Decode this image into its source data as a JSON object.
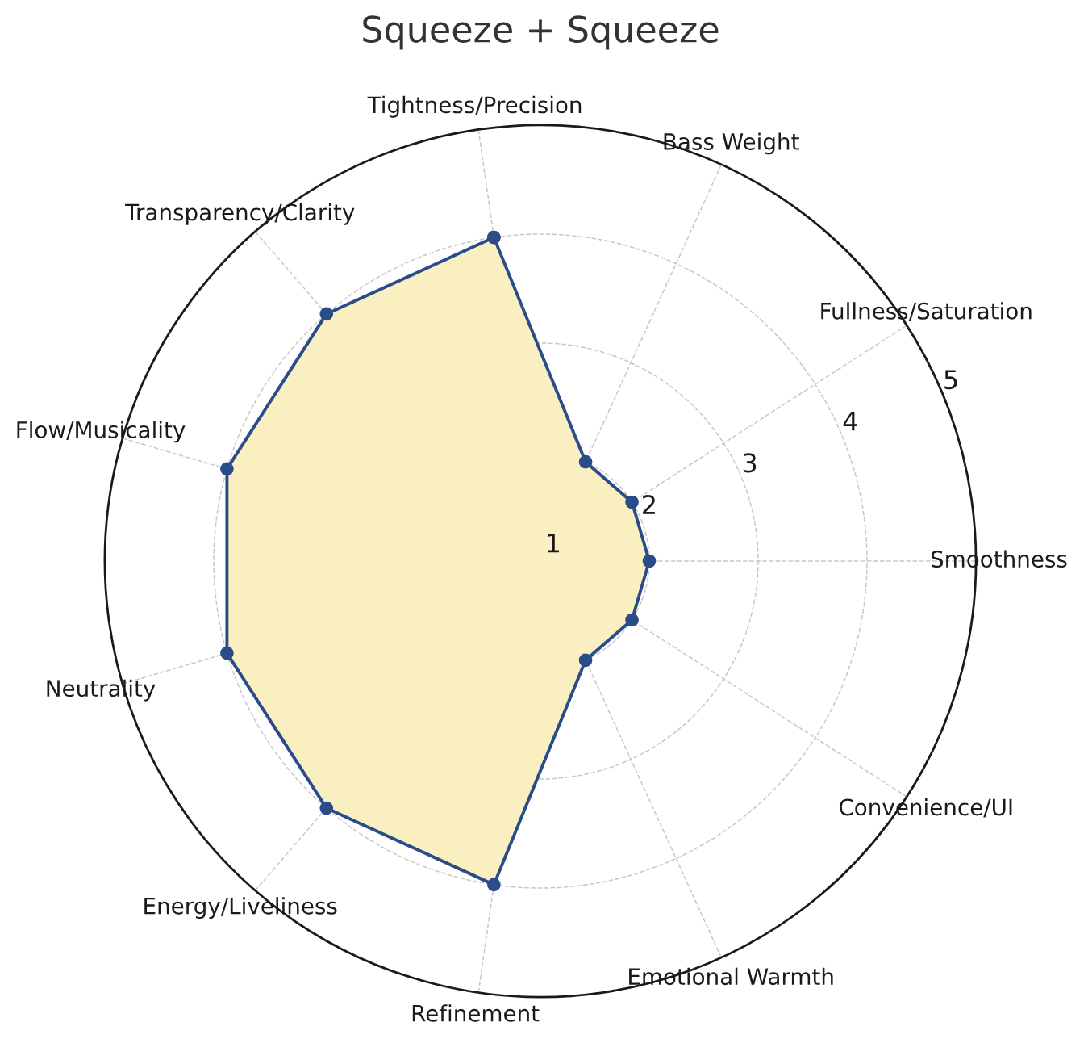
{
  "chart_data": {
    "type": "radar",
    "title": "Squeeze + Squeeze",
    "categories": [
      "Tightness/Precision",
      "Bass Weight",
      "Fullness/Saturation",
      "Smoothness",
      "Convenience/UI",
      "Emotional Warmth",
      "Refinement",
      "Energy/Liveliness",
      "Neutrality",
      "Flow/Musicality",
      "Transparency/Clarity"
    ],
    "series": [
      {
        "color": "#2a4d8a",
        "values": [
          4,
          2,
          2,
          2,
          2,
          2,
          4,
          4,
          4,
          4,
          4
        ]
      }
    ],
    "ylim": [
      1,
      5
    ],
    "yticks": [
      1,
      2,
      3,
      4,
      5
    ],
    "grid": true,
    "marker": "circle",
    "line_style": "solid"
  }
}
